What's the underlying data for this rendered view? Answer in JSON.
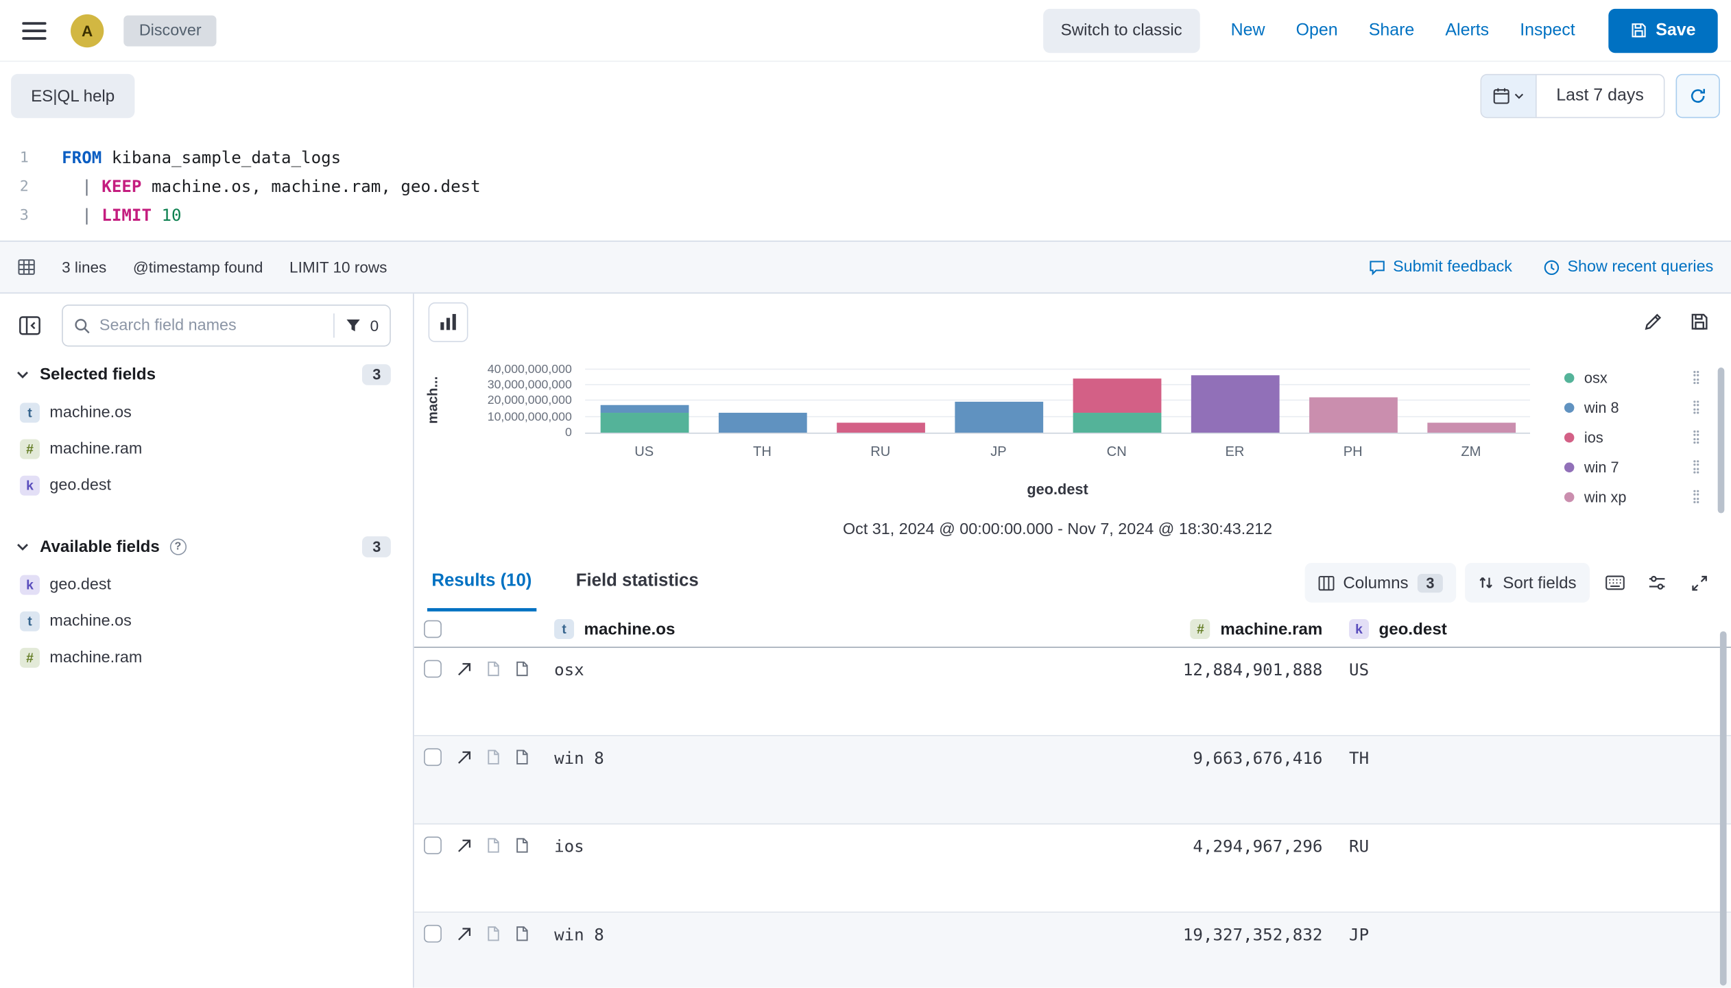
{
  "topbar": {
    "avatar": "A",
    "breadcrumb": "Discover",
    "switch_classic": "Switch to classic",
    "nav_links": [
      "New",
      "Open",
      "Share",
      "Alerts",
      "Inspect"
    ],
    "save_label": "Save"
  },
  "querybar": {
    "esql_help": "ES|QL help",
    "time_range": "Last 7 days"
  },
  "editor": {
    "lines": [
      {
        "num": "1",
        "tokens": [
          {
            "t": "FROM",
            "c": "kw"
          },
          {
            "t": " kibana_sample_data_logs",
            "c": "src"
          }
        ]
      },
      {
        "num": "2",
        "tokens": [
          {
            "t": "  | ",
            "c": "pipe"
          },
          {
            "t": "KEEP",
            "c": "fn"
          },
          {
            "t": " machine.os, machine.ram, geo.dest",
            "c": "src"
          }
        ]
      },
      {
        "num": "3",
        "tokens": [
          {
            "t": "  | ",
            "c": "pipe"
          },
          {
            "t": "LIMIT",
            "c": "fn"
          },
          {
            "t": " ",
            "c": "src"
          },
          {
            "t": "10",
            "c": "num"
          }
        ]
      }
    ]
  },
  "statusbar": {
    "lines_count": "3 lines",
    "timestamp_info": "@timestamp found",
    "limit_info": "LIMIT 10 rows",
    "submit_feedback": "Submit feedback",
    "show_recent": "Show recent queries"
  },
  "sidebar": {
    "search_placeholder": "Search field names",
    "filter_count": "0",
    "selected": {
      "title": "Selected fields",
      "count": "3",
      "fields": [
        {
          "name": "machine.os",
          "type": "t"
        },
        {
          "name": "machine.ram",
          "type": "#"
        },
        {
          "name": "geo.dest",
          "type": "k"
        }
      ]
    },
    "available": {
      "title": "Available fields",
      "count": "3",
      "fields": [
        {
          "name": "geo.dest",
          "type": "k"
        },
        {
          "name": "machine.os",
          "type": "t"
        },
        {
          "name": "machine.ram",
          "type": "#"
        }
      ]
    }
  },
  "chart": {
    "type": "bar",
    "stacked": true,
    "categories": [
      "US",
      "TH",
      "RU",
      "JP",
      "CN",
      "ER",
      "PH",
      "ZM"
    ],
    "series": [
      {
        "name": "osx",
        "color": "#54b399",
        "values": [
          12884901888,
          0,
          0,
          0,
          12884901888,
          0,
          0,
          0
        ]
      },
      {
        "name": "win 8",
        "color": "#6092c0",
        "values": [
          4294967296,
          12884901888,
          0,
          19327352832,
          0,
          0,
          0,
          0
        ]
      },
      {
        "name": "ios",
        "color": "#d36086",
        "values": [
          0,
          0,
          6442450944,
          0,
          21474836480,
          0,
          0,
          0
        ]
      },
      {
        "name": "win 7",
        "color": "#9170b8",
        "values": [
          0,
          0,
          0,
          0,
          0,
          36507222016,
          0,
          0
        ]
      },
      {
        "name": "win xp",
        "color": "#ca8eae",
        "values": [
          0,
          0,
          0,
          0,
          0,
          0,
          22548578304,
          6442450944
        ]
      }
    ],
    "ylabel": "mach...",
    "xlabel": "geo.dest",
    "y_ticks": [
      "40,000,000,000",
      "30,000,000,000",
      "20,000,000,000",
      "10,000,000,000",
      "0"
    ],
    "ymax": 42000000000,
    "legend_position": "right",
    "subtitle": "Oct 31, 2024 @ 00:00:00.000 - Nov 7, 2024 @ 18:30:43.212"
  },
  "results": {
    "tab_results": "Results (10)",
    "tab_stats": "Field statistics",
    "columns_label": "Columns",
    "columns_count": "3",
    "sort_label": "Sort fields",
    "header": [
      {
        "name": "machine.os",
        "type": "t"
      },
      {
        "name": "machine.ram",
        "type": "#"
      },
      {
        "name": "geo.dest",
        "type": "k"
      }
    ],
    "rows": [
      {
        "os": "osx",
        "ram": "12,884,901,888",
        "dest": "US"
      },
      {
        "os": "win 8",
        "ram": "9,663,676,416",
        "dest": "TH"
      },
      {
        "os": "ios",
        "ram": "4,294,967,296",
        "dest": "RU"
      },
      {
        "os": "win 8",
        "ram": "19,327,352,832",
        "dest": "JP"
      }
    ]
  }
}
